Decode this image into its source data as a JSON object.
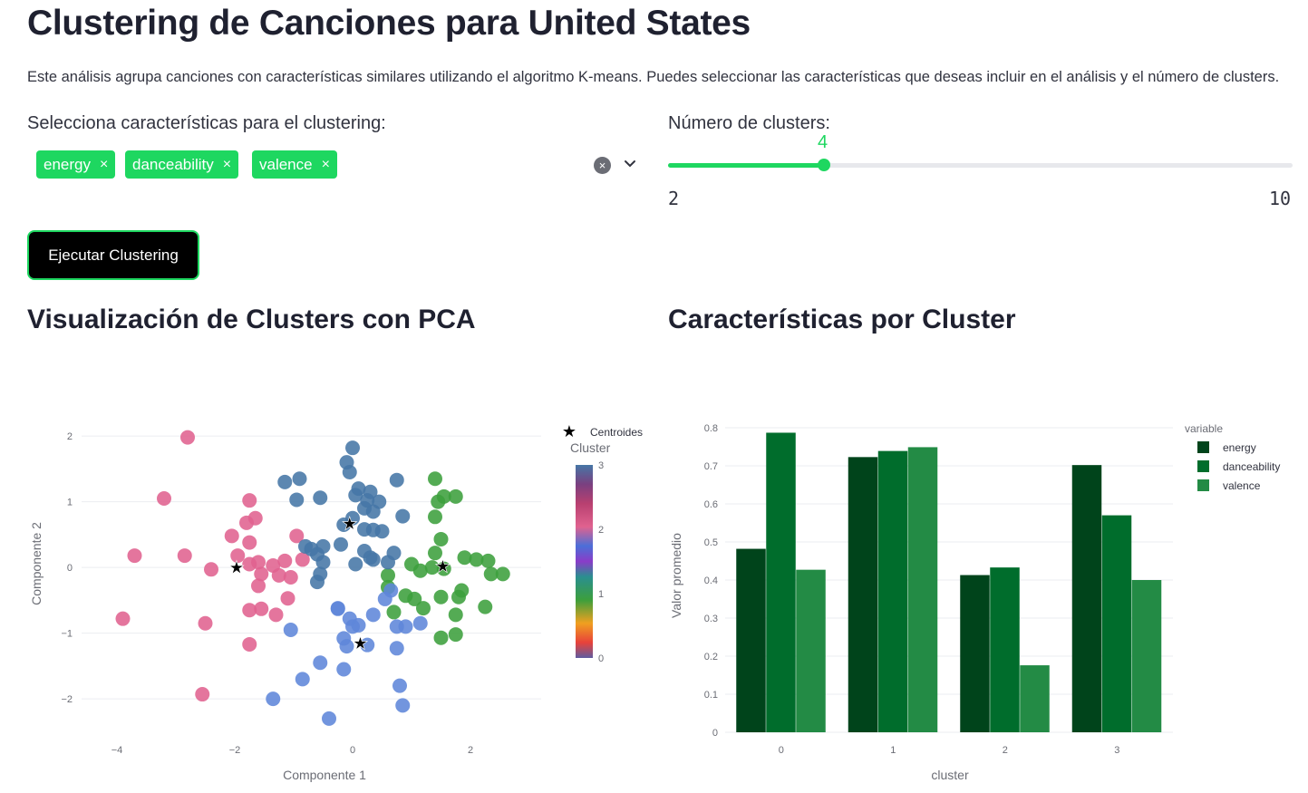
{
  "page": {
    "title": "Clustering de Canciones para United States",
    "description": "Este análisis agrupa canciones con características similares utilizando el algoritmo K-means. Puedes seleccionar las características que deseas incluir en el análisis y el número de clusters."
  },
  "features_select": {
    "label": "Selecciona características para el clustering:",
    "chips": [
      "energy",
      "danceability",
      "valence"
    ],
    "remove_glyph": "×",
    "clear_glyph": "×",
    "accent": "#1ed760"
  },
  "clusters_slider": {
    "label": "Número de clusters:",
    "value": 4,
    "min": 2,
    "max": 10
  },
  "run_button": {
    "label": "Ejecutar Clustering"
  },
  "sections": {
    "pca_title": "Visualización de Clusters con PCA",
    "bar_title": "Características por Cluster"
  },
  "chart_data": [
    {
      "type": "scatter",
      "xlabel": "Componente 1",
      "ylabel": "Componente 2",
      "xlim": [
        -4.6,
        3.2
      ],
      "ylim": [
        -2.55,
        2.25
      ],
      "xticks": [
        -4,
        -2,
        0,
        2
      ],
      "yticks": [
        -2,
        -1,
        0,
        1,
        2
      ],
      "colorbar": {
        "title": "Cluster",
        "ticks": [
          0,
          1,
          2,
          3
        ]
      },
      "legend": [
        {
          "name": "Centroides",
          "symbol": "star"
        }
      ],
      "cluster_colors": {
        "0": "#5f86d9",
        "1": "#3c9f3c",
        "2": "#e0628f",
        "3": "#4676a6"
      },
      "points": [
        [
          -2.8,
          1.98,
          2
        ],
        [
          -3.2,
          1.05,
          2
        ],
        [
          -3.7,
          0.18,
          2
        ],
        [
          -2.85,
          0.18,
          2
        ],
        [
          -2.4,
          -0.03,
          2
        ],
        [
          -3.9,
          -0.78,
          2
        ],
        [
          -2.5,
          -0.85,
          2
        ],
        [
          -2.55,
          -1.93,
          2
        ],
        [
          -1.75,
          1.02,
          2
        ],
        [
          -1.65,
          0.75,
          2
        ],
        [
          -1.8,
          0.68,
          2
        ],
        [
          -2.05,
          0.48,
          2
        ],
        [
          -1.75,
          0.38,
          2
        ],
        [
          -1.95,
          0.18,
          2
        ],
        [
          -1.6,
          0.08,
          2
        ],
        [
          -1.35,
          0.03,
          2
        ],
        [
          -1.15,
          0.1,
          2
        ],
        [
          -0.95,
          0.48,
          2
        ],
        [
          -0.85,
          0.12,
          2
        ],
        [
          -1.75,
          0.05,
          2
        ],
        [
          -1.55,
          -0.1,
          2
        ],
        [
          -1.25,
          -0.12,
          2
        ],
        [
          -1.05,
          -0.15,
          2
        ],
        [
          -1.6,
          -0.28,
          2
        ],
        [
          -1.1,
          -0.47,
          2
        ],
        [
          -1.75,
          -0.65,
          2
        ],
        [
          -1.55,
          -0.63,
          2
        ],
        [
          -1.3,
          -0.72,
          2
        ],
        [
          -1.75,
          -1.17,
          2
        ],
        [
          1.4,
          1.35,
          1
        ],
        [
          1.45,
          1.0,
          1
        ],
        [
          1.55,
          1.08,
          1
        ],
        [
          1.75,
          1.08,
          1
        ],
        [
          1.4,
          0.77,
          1
        ],
        [
          1.5,
          0.43,
          1
        ],
        [
          1.4,
          0.22,
          1
        ],
        [
          1.9,
          0.15,
          1
        ],
        [
          2.1,
          0.12,
          1
        ],
        [
          2.3,
          0.1,
          1
        ],
        [
          2.35,
          -0.1,
          1
        ],
        [
          2.55,
          -0.1,
          1
        ],
        [
          1.0,
          0.05,
          1
        ],
        [
          1.15,
          -0.05,
          1
        ],
        [
          1.35,
          0.0,
          1
        ],
        [
          1.55,
          -0.02,
          1
        ],
        [
          1.85,
          -0.35,
          1
        ],
        [
          0.6,
          -0.12,
          1
        ],
        [
          0.6,
          -0.3,
          1
        ],
        [
          0.9,
          -0.43,
          1
        ],
        [
          1.05,
          -0.48,
          1
        ],
        [
          1.5,
          -0.45,
          1
        ],
        [
          1.8,
          -0.45,
          1
        ],
        [
          0.7,
          -0.68,
          1
        ],
        [
          1.2,
          -0.62,
          1
        ],
        [
          1.75,
          -0.72,
          1
        ],
        [
          2.25,
          -0.6,
          1
        ],
        [
          1.5,
          -1.07,
          1
        ],
        [
          1.75,
          -1.02,
          1
        ],
        [
          0.0,
          1.82,
          3
        ],
        [
          -0.1,
          1.6,
          3
        ],
        [
          -0.05,
          1.45,
          3
        ],
        [
          0.75,
          1.33,
          3
        ],
        [
          -1.15,
          1.3,
          3
        ],
        [
          -0.9,
          1.35,
          3
        ],
        [
          0.1,
          1.2,
          3
        ],
        [
          0.3,
          1.15,
          3
        ],
        [
          -0.95,
          1.03,
          3
        ],
        [
          -0.55,
          1.06,
          3
        ],
        [
          0.05,
          1.1,
          3
        ],
        [
          0.25,
          1.02,
          3
        ],
        [
          0.45,
          1.0,
          3
        ],
        [
          0.2,
          0.9,
          3
        ],
        [
          0.35,
          0.85,
          3
        ],
        [
          0.85,
          0.78,
          3
        ],
        [
          -0.15,
          0.65,
          3
        ],
        [
          0.0,
          0.75,
          3
        ],
        [
          0.2,
          0.58,
          3
        ],
        [
          0.35,
          0.57,
          3
        ],
        [
          0.5,
          0.55,
          3
        ],
        [
          -0.2,
          0.35,
          3
        ],
        [
          -0.5,
          0.32,
          3
        ],
        [
          -0.8,
          0.32,
          3
        ],
        [
          -0.7,
          0.28,
          3
        ],
        [
          -0.6,
          0.2,
          3
        ],
        [
          -0.5,
          0.08,
          3
        ],
        [
          0.2,
          0.25,
          3
        ],
        [
          0.3,
          0.15,
          3
        ],
        [
          0.35,
          0.12,
          3
        ],
        [
          0.7,
          0.22,
          3
        ],
        [
          0.6,
          0.08,
          3
        ],
        [
          0.05,
          0.05,
          3
        ],
        [
          -0.55,
          -0.1,
          3
        ],
        [
          -0.6,
          -0.22,
          3
        ],
        [
          -0.25,
          -0.62,
          0
        ],
        [
          -0.25,
          -0.63,
          0
        ],
        [
          -0.05,
          -0.78,
          0
        ],
        [
          0.35,
          -0.72,
          0
        ],
        [
          0.65,
          -0.35,
          0
        ],
        [
          0.55,
          -0.48,
          0
        ],
        [
          0.75,
          -0.9,
          0
        ],
        [
          0.9,
          -0.9,
          0
        ],
        [
          1.15,
          -0.85,
          0
        ],
        [
          -1.05,
          -0.95,
          0
        ],
        [
          0.0,
          -0.9,
          0
        ],
        [
          0.1,
          -0.88,
          0
        ],
        [
          -0.15,
          -1.08,
          0
        ],
        [
          -0.1,
          -1.2,
          0
        ],
        [
          0.25,
          -1.18,
          0
        ],
        [
          0.75,
          -1.23,
          0
        ],
        [
          -0.55,
          -1.45,
          0
        ],
        [
          -0.85,
          -1.7,
          0
        ],
        [
          -0.15,
          -1.55,
          0
        ],
        [
          0.8,
          -1.8,
          0
        ],
        [
          -1.35,
          -2.0,
          0
        ],
        [
          0.85,
          -2.1,
          0
        ],
        [
          -0.4,
          -2.3,
          0
        ]
      ],
      "centroids": [
        [
          -1.97,
          0.0
        ],
        [
          -0.05,
          0.67
        ],
        [
          1.53,
          0.02
        ],
        [
          0.13,
          -1.15
        ]
      ]
    },
    {
      "type": "bar",
      "xlabel": "cluster",
      "ylabel": "Valor promedio",
      "categories": [
        "0",
        "1",
        "2",
        "3"
      ],
      "ylim": [
        0,
        0.8
      ],
      "yticks": [
        "0",
        "0.1",
        "0.2",
        "0.3",
        "0.4",
        "0.5",
        "0.6",
        "0.7",
        "0.8"
      ],
      "legend_title": "variable",
      "series": [
        {
          "name": "energy",
          "color": "#00441b",
          "values": [
            0.482,
            0.723,
            0.413,
            0.702
          ]
        },
        {
          "name": "danceability",
          "color": "#006d2c",
          "values": [
            0.787,
            0.739,
            0.433,
            0.57
          ]
        },
        {
          "name": "valence",
          "color": "#238b45",
          "values": [
            0.427,
            0.749,
            0.176,
            0.4
          ]
        }
      ]
    }
  ]
}
